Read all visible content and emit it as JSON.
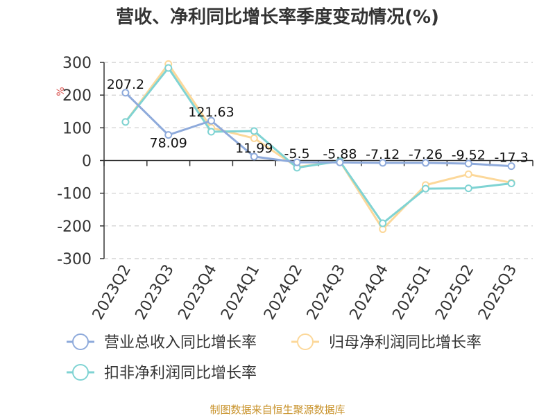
{
  "chart_data": {
    "type": "line",
    "title": "营收、净利同比增长率季度变动情况(%)",
    "ylabel": "%",
    "categories": [
      "2023Q2",
      "2023Q3",
      "2023Q4",
      "2024Q1",
      "2024Q2",
      "2024Q3",
      "2024Q4",
      "2025Q1",
      "2025Q2",
      "2025Q3"
    ],
    "ylim": [
      -300,
      300
    ],
    "yticks": [
      300,
      200,
      100,
      0,
      -100,
      -200,
      -300
    ],
    "ytick_labels": [
      "300",
      "200",
      "100",
      "0",
      "-100",
      "-200",
      "-300"
    ],
    "grid": true,
    "legend_position": "bottom",
    "series": [
      {
        "name": "营业总收入同比增长率",
        "color": "#8eaadb",
        "values": [
          207.2,
          78.09,
          121.63,
          11.99,
          -5.5,
          -5.88,
          -7.12,
          -7.26,
          -9.52,
          -17.3
        ],
        "labels": [
          "207.2",
          "78.09",
          "121.63",
          "11.99",
          "-5.5",
          "-5.88",
          "-7.12",
          "-7.26",
          "-9.52",
          "-17.3"
        ]
      },
      {
        "name": "归母净利润同比增长率",
        "color": "#fcd89a",
        "values": [
          118,
          295,
          100,
          68,
          -20,
          -2,
          -210,
          -75,
          -42,
          -68
        ]
      },
      {
        "name": "扣非净利润同比增长率",
        "color": "#7fd3d3",
        "values": [
          118,
          283,
          88,
          90,
          -22,
          -2,
          -192,
          -86,
          -85,
          -70
        ]
      }
    ]
  },
  "footer": {
    "source": "制图数据来自恒生聚源数据库"
  }
}
